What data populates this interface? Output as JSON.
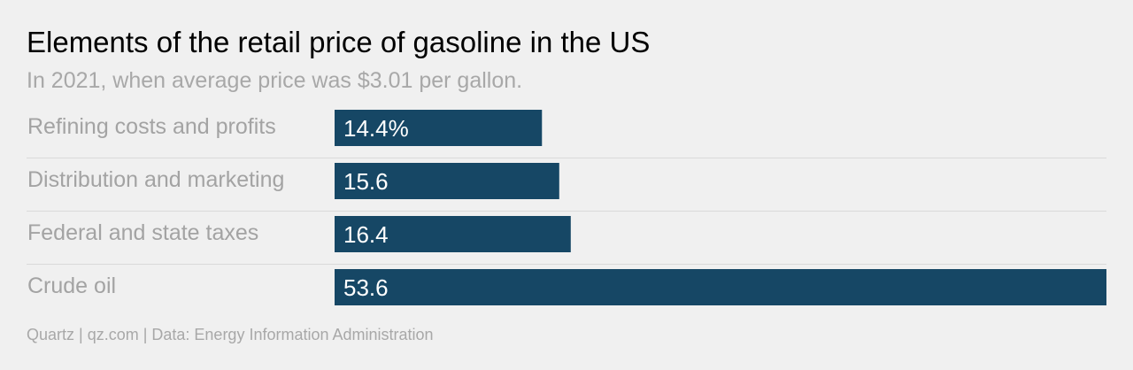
{
  "title": "Elements of the retail price of gasoline in the US",
  "subtitle": "In 2021, when average price was $3.01 per gallon.",
  "footer": "Quartz | qz.com | Data: Energy Information Administration",
  "colors": {
    "bar": "#164765",
    "background": "#f0f0f0",
    "separator": "#d9d9d9"
  },
  "chart_data": {
    "type": "bar",
    "orientation": "horizontal",
    "title": "Elements of the retail price of gasoline in the US",
    "subtitle": "In 2021, when average price was $3.01 per gallon.",
    "categories": [
      "Refining costs and profits",
      "Distribution and marketing",
      "Federal and state taxes",
      "Crude oil"
    ],
    "values": [
      14.4,
      15.6,
      16.4,
      53.6
    ],
    "value_labels": [
      "14.4%",
      "15.6",
      "16.4",
      "53.6"
    ],
    "unit": "%",
    "xlim": [
      0,
      53.6
    ],
    "grid": false,
    "legend": "none"
  }
}
